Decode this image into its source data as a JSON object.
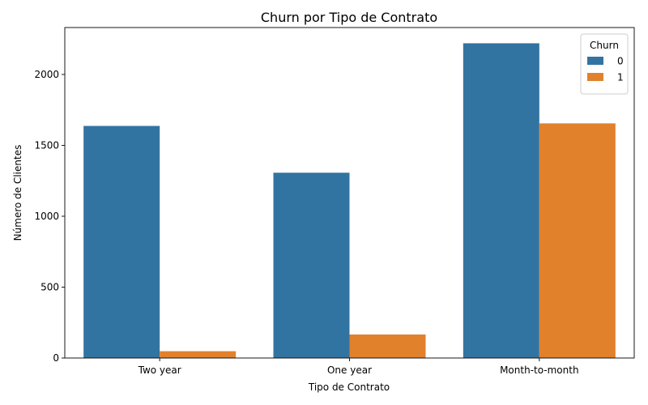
{
  "chart_data": {
    "type": "bar",
    "title": "Churn por Tipo de Contrato",
    "xlabel": "Tipo de Contrato",
    "ylabel": "Número de Clientes",
    "categories": [
      "Two year",
      "One year",
      "Month-to-month"
    ],
    "series": [
      {
        "name": "0",
        "values": [
          1637,
          1307,
          2220
        ],
        "color": "#3274a1"
      },
      {
        "name": "1",
        "values": [
          48,
          166,
          1655
        ],
        "color": "#e1812c"
      }
    ],
    "ylim": [
      0,
      2331
    ],
    "yticks": [
      0,
      500,
      1000,
      1500,
      2000
    ],
    "grid": false,
    "legend": {
      "title": "Churn",
      "placement": "top-right"
    }
  }
}
